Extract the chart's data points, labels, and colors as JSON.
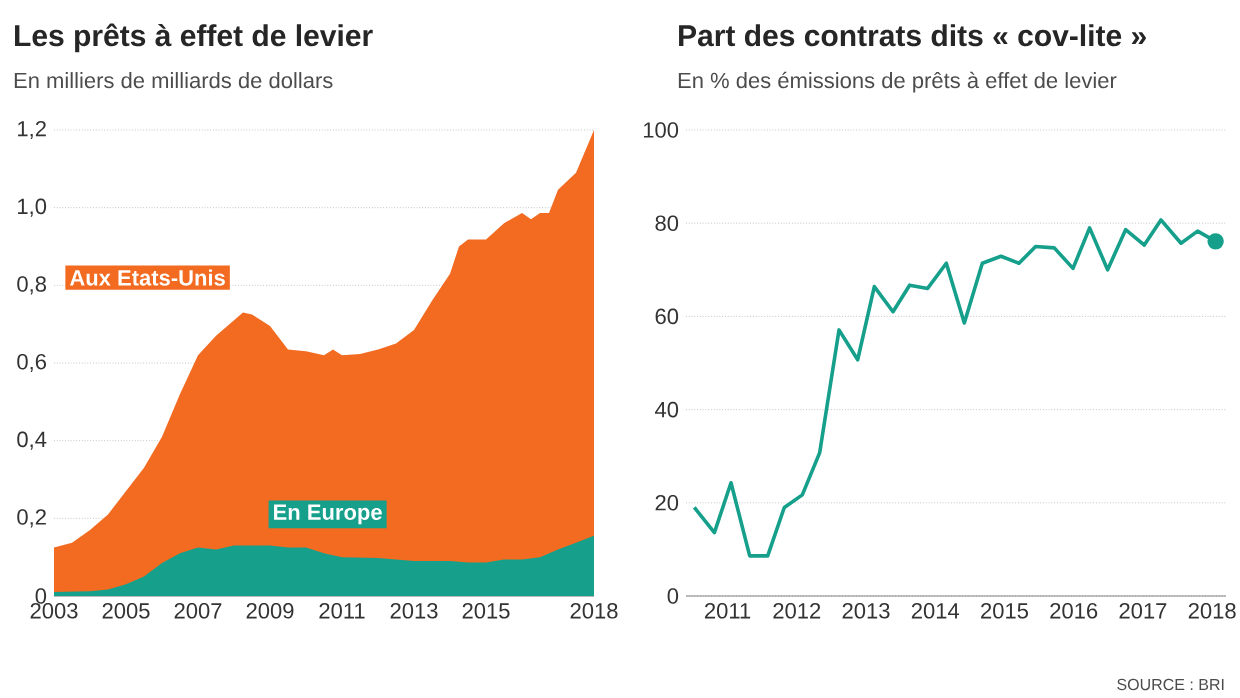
{
  "chart_data": [
    {
      "type": "area",
      "title": "Les prêts à effet de levier",
      "subtitle": "En milliers de milliards de dollars",
      "xlim": [
        2003,
        2018
      ],
      "ylim": [
        0,
        1.2
      ],
      "xticks": [
        2003,
        2005,
        2007,
        2009,
        2011,
        2013,
        2015,
        2018
      ],
      "yticks": [
        0,
        {
          "value": 0.2,
          "label": "0,2"
        },
        {
          "value": 0.4,
          "label": "0,4"
        },
        {
          "value": 0.6,
          "label": "0,6"
        },
        {
          "value": 0.8,
          "label": "0,8"
        },
        {
          "value": 1.0,
          "label": "1,0"
        },
        {
          "value": 1.2,
          "label": "1,2"
        }
      ],
      "grid": "y",
      "legend": false,
      "series": [
        {
          "name": "Aux Etats-Unis",
          "color": "#f26b21",
          "x": [
            2003,
            2003.5,
            2004,
            2004.5,
            2005,
            2005.5,
            2006,
            2006.5,
            2007,
            2007.5,
            2008,
            2008.25,
            2008.5,
            2009,
            2009.5,
            2010,
            2010.5,
            2010.75,
            2011,
            2011.5,
            2012,
            2012.5,
            2013,
            2013.5,
            2014,
            2014.25,
            2014.5,
            2015,
            2015.5,
            2016,
            2016.25,
            2016.5,
            2016.75,
            2017,
            2017.5,
            2018
          ],
          "values": [
            0.125,
            0.137,
            0.17,
            0.21,
            0.27,
            0.33,
            0.41,
            0.52,
            0.62,
            0.67,
            0.71,
            0.73,
            0.725,
            0.695,
            0.635,
            0.63,
            0.62,
            0.635,
            0.62,
            0.623,
            0.635,
            0.65,
            0.685,
            0.76,
            0.83,
            0.9,
            0.918,
            0.918,
            0.96,
            0.986,
            0.97,
            0.986,
            0.986,
            1.046,
            1.09,
            1.2
          ]
        },
        {
          "name": "En Europe",
          "color": "#16a08c",
          "x": [
            2003,
            2004,
            2004.5,
            2005,
            2005.5,
            2006,
            2006.5,
            2007,
            2007.5,
            2008,
            2009,
            2009.5,
            2010,
            2010.5,
            2011,
            2012,
            2012.5,
            2013,
            2014,
            2014.5,
            2015,
            2015.5,
            2016,
            2016.5,
            2017,
            2017.5,
            2018
          ],
          "values": [
            0.01,
            0.012,
            0.017,
            0.03,
            0.05,
            0.085,
            0.11,
            0.125,
            0.12,
            0.13,
            0.13,
            0.125,
            0.125,
            0.11,
            0.1,
            0.098,
            0.094,
            0.09,
            0.09,
            0.086,
            0.086,
            0.094,
            0.094,
            0.1,
            0.12,
            0.137,
            0.155
          ]
        }
      ]
    },
    {
      "type": "line",
      "title": "Part des contrats dits « cov-lite »",
      "subtitle": "En % des émissions de prêts à effet de levier",
      "xlim": [
        2010.4,
        2018.2
      ],
      "ylim": [
        0,
        100
      ],
      "xticks": [
        2011,
        2012,
        2013,
        2014,
        2015,
        2016,
        2017,
        2018
      ],
      "yticks": [
        0,
        20,
        40,
        60,
        80,
        100
      ],
      "grid": "y",
      "legend": false,
      "annotations": [
        "SOURCE : BRI"
      ],
      "series": [
        {
          "color": "#16a08c",
          "line_style": "solid",
          "marker": "none",
          "x": [
            2010.52,
            2010.81,
            2011.05,
            2011.32,
            2011.58,
            2011.82,
            2012.08,
            2012.33,
            2012.61,
            2012.88,
            2013.12,
            2013.39,
            2013.63,
            2013.89,
            2014.16,
            2014.42,
            2014.68,
            2014.95,
            2015.21,
            2015.45,
            2015.72,
            2015.99,
            2016.23,
            2016.49,
            2016.75,
            2017.02,
            2017.26,
            2017.55,
            2017.79,
            2018.05
          ],
          "values": [
            19,
            13.6,
            24.3,
            8.6,
            8.6,
            19,
            21.7,
            30.7,
            57.1,
            50.7,
            66.4,
            61,
            66.7,
            66,
            71.4,
            58.6,
            71.4,
            72.9,
            71.4,
            75,
            74.7,
            70.3,
            79,
            70,
            78.6,
            75.3,
            80.7,
            75.7,
            78.3,
            76.1
          ]
        },
        {
          "color": "#16a08c",
          "marker": "circle",
          "x": [
            2018.05
          ],
          "values": [
            76.1
          ]
        }
      ]
    }
  ]
}
